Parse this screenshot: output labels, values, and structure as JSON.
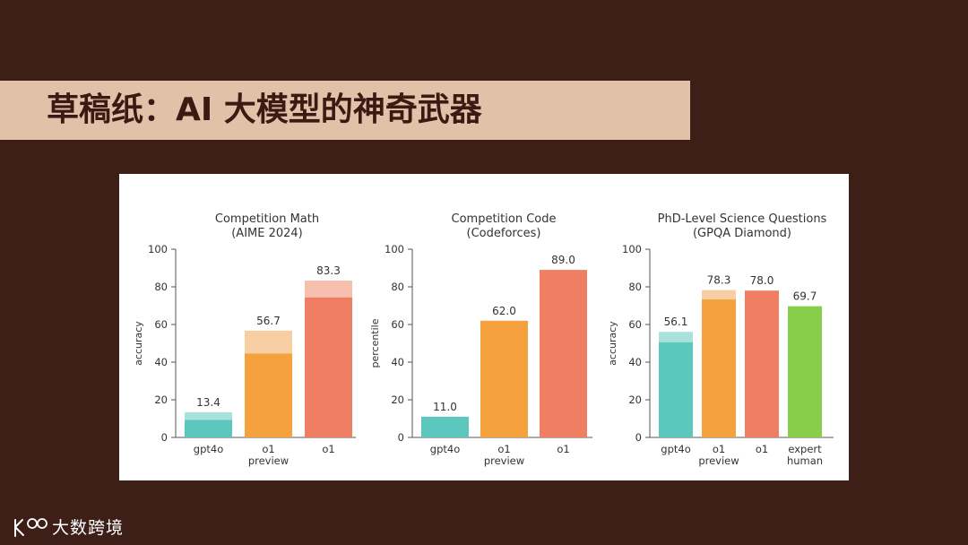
{
  "page": {
    "title": "草稿纸：AI 大模型的神奇武器",
    "brand": "大数跨境"
  },
  "colors": {
    "background": "#3d1f18",
    "banner": "#e1c2a8",
    "gpt4o": "#5cc7bd",
    "gpt4o_light": "#a9e2dc",
    "o1_preview": "#f4a13e",
    "o1_preview_light": "#f7cfa3",
    "o1": "#ef7e62",
    "o1_light": "#f6bfae",
    "expert_human": "#88ce4a"
  },
  "chart_data": [
    {
      "type": "bar",
      "title": "Competition Math",
      "subtitle": "(AIME 2024)",
      "ylabel": "accuracy",
      "ylim": [
        0,
        100
      ],
      "yticks": [
        0,
        20,
        40,
        60,
        80,
        100
      ],
      "categories": [
        "gpt4o",
        "o1\npreview",
        "o1"
      ],
      "values": [
        13.4,
        56.7,
        83.3
      ],
      "base_values": [
        9.3,
        44.6,
        74.4
      ],
      "value_labels": [
        "13.4",
        "56.7",
        "83.3"
      ],
      "bar_colors": [
        "gpt4o",
        "o1_preview",
        "o1"
      ]
    },
    {
      "type": "bar",
      "title": "Competition Code",
      "subtitle": "(Codeforces)",
      "ylabel": "percentile",
      "ylim": [
        0,
        100
      ],
      "yticks": [
        0,
        20,
        40,
        60,
        80,
        100
      ],
      "categories": [
        "gpt4o",
        "o1\npreview",
        "o1"
      ],
      "values": [
        11.0,
        62.0,
        89.0
      ],
      "base_values": [
        11.0,
        62.0,
        89.0
      ],
      "value_labels": [
        "11.0",
        "62.0",
        "89.0"
      ],
      "bar_colors": [
        "gpt4o",
        "o1_preview",
        "o1"
      ]
    },
    {
      "type": "bar",
      "title": "PhD-Level Science Questions",
      "subtitle": "(GPQA Diamond)",
      "ylabel": "accuracy",
      "ylim": [
        0,
        100
      ],
      "yticks": [
        0,
        20,
        40,
        60,
        80,
        100
      ],
      "categories": [
        "gpt4o",
        "o1\npreview",
        "o1",
        "expert\nhuman"
      ],
      "values": [
        56.1,
        78.3,
        78.0,
        69.7
      ],
      "base_values": [
        50.6,
        73.3,
        78.0,
        69.7
      ],
      "value_labels": [
        "56.1",
        "78.3",
        "78.0",
        "69.7"
      ],
      "bar_colors": [
        "gpt4o",
        "o1_preview",
        "o1",
        "expert_human"
      ]
    }
  ]
}
